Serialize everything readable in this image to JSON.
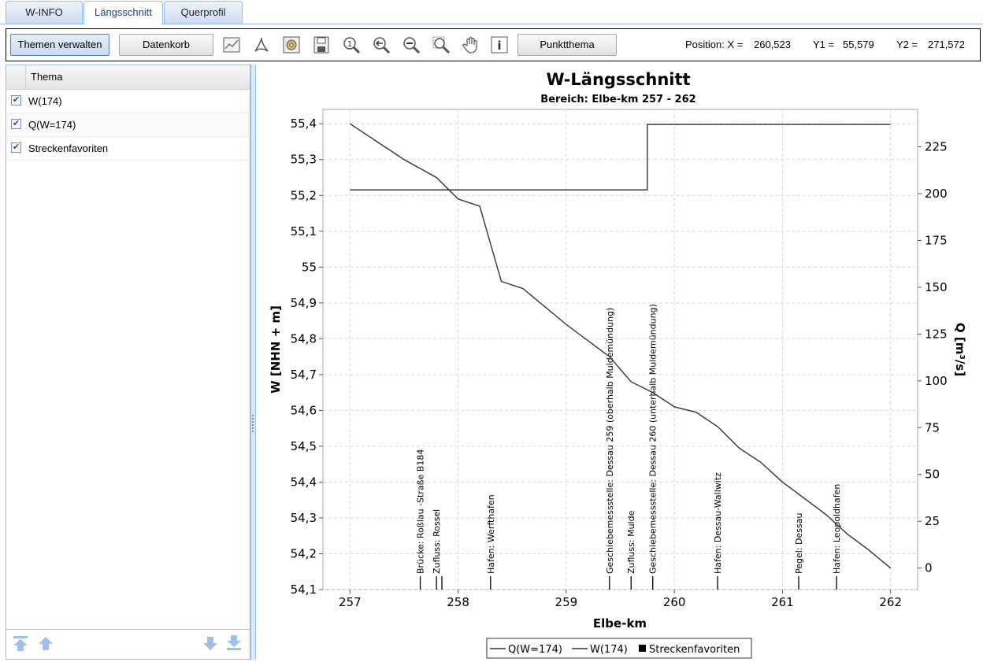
{
  "tabs": [
    {
      "label": "W-INFO"
    },
    {
      "label": "Längsschnitt"
    },
    {
      "label": "Querprofil"
    }
  ],
  "toolbar": {
    "themes_label": "Themen verwalten",
    "basket_label": "Datenkorb",
    "point_label": "Punktthema",
    "icons": [
      "chart-config-icon",
      "pdf-icon",
      "settings-gear-icon",
      "csv-export-icon",
      "zoom-reset-icon",
      "pan-back-icon",
      "zoom-out-icon",
      "zoom-box-icon",
      "pan-hand-icon",
      "info-icon"
    ],
    "position": {
      "x_label": "Position: X =",
      "x_value": "260,523",
      "y1_label": "Y1 =",
      "y1_value": "55,579",
      "y2_label": "Y2 =",
      "y2_value": "271,572"
    }
  },
  "theme_panel": {
    "header": "Thema",
    "items": [
      {
        "label": "W(174)",
        "checked": true
      },
      {
        "label": "Q(W=174)",
        "checked": true
      },
      {
        "label": "Streckenfavoriten",
        "checked": true
      }
    ]
  },
  "chart_data": {
    "type": "line",
    "title": "W-Längsschnitt",
    "subtitle": "Bereich: Elbe-km 257 - 262",
    "xlabel": "Elbe-km",
    "ylabel": "W [NHN + m]",
    "y2label": "Q [m³/s]",
    "xlim": [
      256.75,
      262.25
    ],
    "ylim": [
      54.1,
      55.44
    ],
    "y2lim": [
      -11.5,
      245
    ],
    "x_ticks": [
      "257",
      "258",
      "259",
      "260",
      "261",
      "262"
    ],
    "y_ticks": [
      "54,1",
      "54,2",
      "54,3",
      "54,4",
      "54,5",
      "54,6",
      "54,7",
      "54,8",
      "54,9",
      "55",
      "55,1",
      "55,2",
      "55,3",
      "55,4"
    ],
    "y2_ticks": [
      "0",
      "25",
      "50",
      "75",
      "100",
      "125",
      "150",
      "175",
      "200",
      "225"
    ],
    "grid": true,
    "series": [
      {
        "name": "W(174)",
        "axis": "left",
        "color": "#333333",
        "x": [
          257.0,
          257.5,
          257.8,
          258.0,
          258.2,
          258.4,
          258.6,
          259.0,
          259.4,
          259.6,
          259.8,
          260.0,
          260.2,
          260.4,
          260.6,
          260.8,
          261.0,
          261.2,
          261.4,
          261.6,
          261.8,
          262.0
        ],
        "y": [
          55.4,
          55.3,
          55.25,
          55.19,
          55.17,
          54.96,
          54.94,
          54.84,
          54.75,
          54.68,
          54.65,
          54.61,
          54.595,
          54.555,
          54.495,
          54.455,
          54.4,
          54.355,
          54.31,
          54.255,
          54.21,
          54.16
        ]
      },
      {
        "name": "Q(W=174)",
        "axis": "right",
        "color": "#333333",
        "x": [
          257.0,
          259.75,
          259.75,
          262.0
        ],
        "y": [
          202,
          202,
          237,
          237
        ]
      }
    ],
    "favorites": [
      {
        "x": 257.65,
        "label": "Brücke: Roßlau -Straße B184"
      },
      {
        "x": 257.8,
        "label": "Zufluss: Rossel"
      },
      {
        "x": 257.85,
        "label": ""
      },
      {
        "x": 258.3,
        "label": "Hafen: Werfthafen"
      },
      {
        "x": 259.4,
        "label": "Geschiebemessstelle: Dessau 259 (oberhalb Muldemündung)"
      },
      {
        "x": 259.6,
        "label": "Zufluss: Mulde"
      },
      {
        "x": 259.8,
        "label": "Geschiebemessstelle: Dessau 260 (unterhalb Muldemündung)"
      },
      {
        "x": 260.4,
        "label": "Hafen: Dessau-Wallwitz"
      },
      {
        "x": 261.15,
        "label": "Pegel: Dessau"
      },
      {
        "x": 261.5,
        "label": "Hafen: Leopoldhafen"
      }
    ],
    "legend": {
      "placement": "bottom-center",
      "entries": [
        "Q(W=174)",
        "W(174)",
        "Streckenfavoriten"
      ]
    }
  }
}
